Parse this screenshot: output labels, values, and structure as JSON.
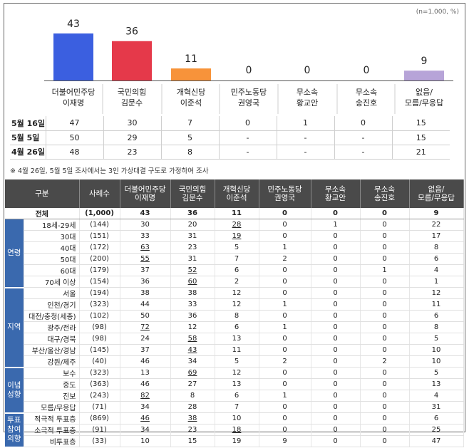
{
  "note": "(n=1,000, %)",
  "footnote": "※ 4월 26일, 5월 5일 조사에서는 3인 가상대결 구도로 가정하여 조사",
  "chart_data": {
    "type": "bar",
    "categories": [
      [
        "더불어민주당",
        "이재명"
      ],
      [
        "국민의힘",
        "김문수"
      ],
      [
        "개혁신당",
        "이준석"
      ],
      [
        "민주노동당",
        "권영국"
      ],
      [
        "무소속",
        "황교안"
      ],
      [
        "무소속",
        "송진호"
      ],
      [
        "없음/",
        "모름/무응답"
      ]
    ],
    "values": [
      43,
      36,
      11,
      0,
      0,
      0,
      9
    ],
    "colors": [
      "#3b5fe0",
      "#e5394a",
      "#f7933a",
      "#cccccc",
      "#cccccc",
      "#cccccc",
      "#b7a4d8"
    ],
    "ylim": [
      0,
      50
    ]
  },
  "trend": {
    "rows": [
      {
        "date": "5월 16일",
        "values": [
          "47",
          "30",
          "7",
          "0",
          "1",
          "0",
          "15"
        ]
      },
      {
        "date": "5월 5일",
        "values": [
          "50",
          "29",
          "5",
          "-",
          "-",
          "-",
          "15"
        ]
      },
      {
        "date": "4월 26일",
        "values": [
          "48",
          "23",
          "8",
          "-",
          "-",
          "-",
          "21"
        ]
      }
    ]
  },
  "table": {
    "headers": [
      "구분",
      "사례수",
      "더불어민주당\n이재명",
      "국민의힘\n김문수",
      "개혁신당\n이준석",
      "민주노동당\n권영국",
      "무소속\n황교안",
      "무소속\n송진호",
      "없음/\n모름/무응답"
    ],
    "total": {
      "label": "전체",
      "n": "(1,000)",
      "values": [
        "43",
        "36",
        "11",
        "0",
        "0",
        "0",
        "9"
      ]
    },
    "groups": [
      {
        "name": "연령",
        "rows": [
          {
            "label": "18세-29세",
            "n": "(144)",
            "values": [
              "30",
              "20",
              "28",
              "0",
              "1",
              "0",
              "22"
            ],
            "u": [
              2
            ]
          },
          {
            "label": "30대",
            "n": "(151)",
            "values": [
              "33",
              "31",
              "19",
              "0",
              "0",
              "0",
              "17"
            ],
            "u": [
              2
            ]
          },
          {
            "label": "40대",
            "n": "(172)",
            "values": [
              "63",
              "23",
              "5",
              "1",
              "0",
              "0",
              "8"
            ],
            "u": [
              0
            ]
          },
          {
            "label": "50대",
            "n": "(200)",
            "values": [
              "55",
              "31",
              "7",
              "2",
              "0",
              "0",
              "6"
            ],
            "u": [
              0
            ]
          },
          {
            "label": "60대",
            "n": "(179)",
            "values": [
              "37",
              "52",
              "6",
              "0",
              "0",
              "1",
              "4"
            ],
            "u": [
              1
            ]
          },
          {
            "label": "70세 이상",
            "n": "(154)",
            "values": [
              "36",
              "60",
              "2",
              "0",
              "0",
              "0",
              "1"
            ],
            "u": [
              1
            ]
          }
        ]
      },
      {
        "name": "지역",
        "rows": [
          {
            "label": "서울",
            "n": "(194)",
            "values": [
              "38",
              "38",
              "12",
              "0",
              "0",
              "0",
              "12"
            ],
            "u": []
          },
          {
            "label": "인천/경기",
            "n": "(323)",
            "values": [
              "44",
              "33",
              "12",
              "1",
              "0",
              "0",
              "11"
            ],
            "u": []
          },
          {
            "label": "대전/충청(세종)",
            "n": "(102)",
            "values": [
              "50",
              "36",
              "8",
              "0",
              "0",
              "0",
              "6"
            ],
            "u": []
          },
          {
            "label": "광주/전라",
            "n": "(98)",
            "values": [
              "72",
              "12",
              "6",
              "1",
              "0",
              "0",
              "8"
            ],
            "u": [
              0
            ]
          },
          {
            "label": "대구/경북",
            "n": "(98)",
            "values": [
              "24",
              "58",
              "13",
              "0",
              "0",
              "0",
              "5"
            ],
            "u": [
              1
            ]
          },
          {
            "label": "부산/울산/경남",
            "n": "(145)",
            "values": [
              "37",
              "43",
              "11",
              "0",
              "0",
              "0",
              "10"
            ],
            "u": [
              1
            ]
          },
          {
            "label": "강원/제주",
            "n": "(40)",
            "values": [
              "46",
              "34",
              "5",
              "2",
              "0",
              "2",
              "10"
            ],
            "u": []
          }
        ]
      },
      {
        "name": "이념\n성향",
        "rows": [
          {
            "label": "보수",
            "n": "(323)",
            "values": [
              "13",
              "69",
              "12",
              "0",
              "0",
              "0",
              "5"
            ],
            "u": [
              1
            ]
          },
          {
            "label": "중도",
            "n": "(363)",
            "values": [
              "46",
              "27",
              "13",
              "0",
              "0",
              "0",
              "13"
            ],
            "u": []
          },
          {
            "label": "진보",
            "n": "(243)",
            "values": [
              "82",
              "8",
              "6",
              "1",
              "0",
              "0",
              "4"
            ],
            "u": [
              0
            ]
          },
          {
            "label": "모름/무응답",
            "n": "(71)",
            "values": [
              "34",
              "28",
              "7",
              "0",
              "0",
              "0",
              "31"
            ],
            "u": []
          }
        ]
      },
      {
        "name": "투표\n참여\n의향",
        "rows": [
          {
            "label": "적극적 투표층",
            "n": "(869)",
            "values": [
              "46",
              "38",
              "10",
              "0",
              "0",
              "0",
              "6"
            ],
            "u": [
              0,
              1
            ]
          },
          {
            "label": "소극적 투표층",
            "n": "(91)",
            "values": [
              "34",
              "23",
              "18",
              "0",
              "0",
              "0",
              "25"
            ],
            "u": [
              2
            ]
          },
          {
            "label": "비투표층",
            "n": "(33)",
            "values": [
              "10",
              "15",
              "19",
              "9",
              "0",
              "0",
              "47"
            ],
            "u": []
          }
        ]
      }
    ]
  }
}
